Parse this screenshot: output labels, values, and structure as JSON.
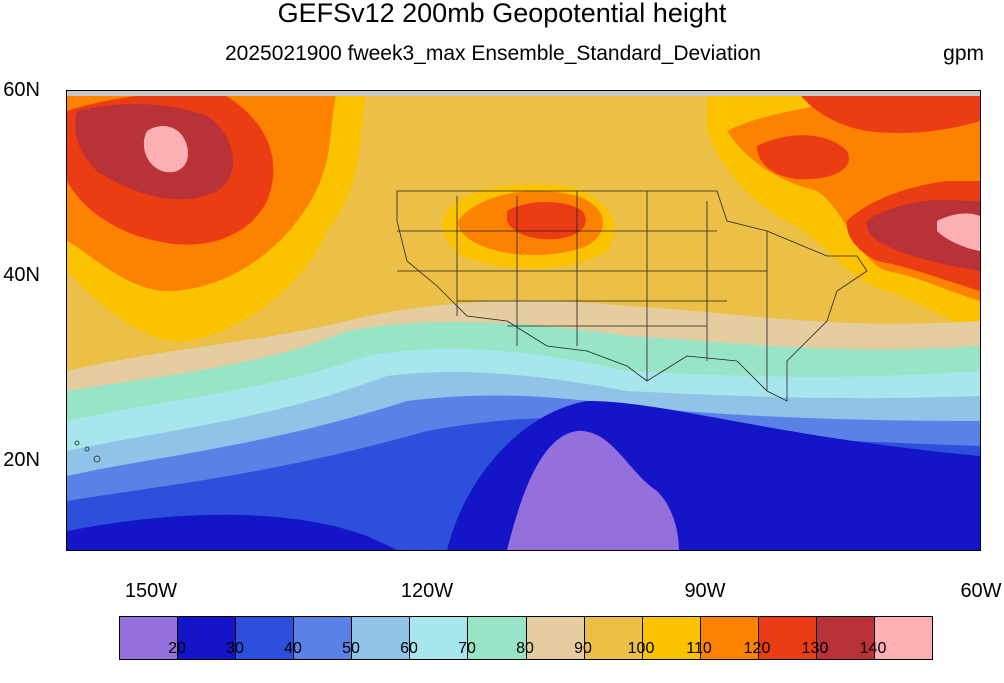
{
  "title": "GEFSv12 200mb Geopotential height",
  "subtitle": "2025021900 fweek3_max Ensemble_Standard_Deviation",
  "units": "gpm",
  "lat_labels": [
    "60N",
    "40N",
    "20N"
  ],
  "lon_labels": [
    "150W",
    "120W",
    "90W",
    "60W"
  ],
  "colorbar": {
    "colors": [
      "#9370db",
      "#1414c8",
      "#2c50dc",
      "#5a82e6",
      "#8fc3e8",
      "#a8e6ee",
      "#98e4c6",
      "#e6cda0",
      "#ecc046",
      "#fbc200",
      "#fc8200",
      "#eb3c14",
      "#b83238",
      "#fcb0b4"
    ],
    "labels": [
      "20",
      "30",
      "40",
      "50",
      "60",
      "70",
      "80",
      "90",
      "100",
      "110",
      "120",
      "130",
      "140"
    ]
  }
}
